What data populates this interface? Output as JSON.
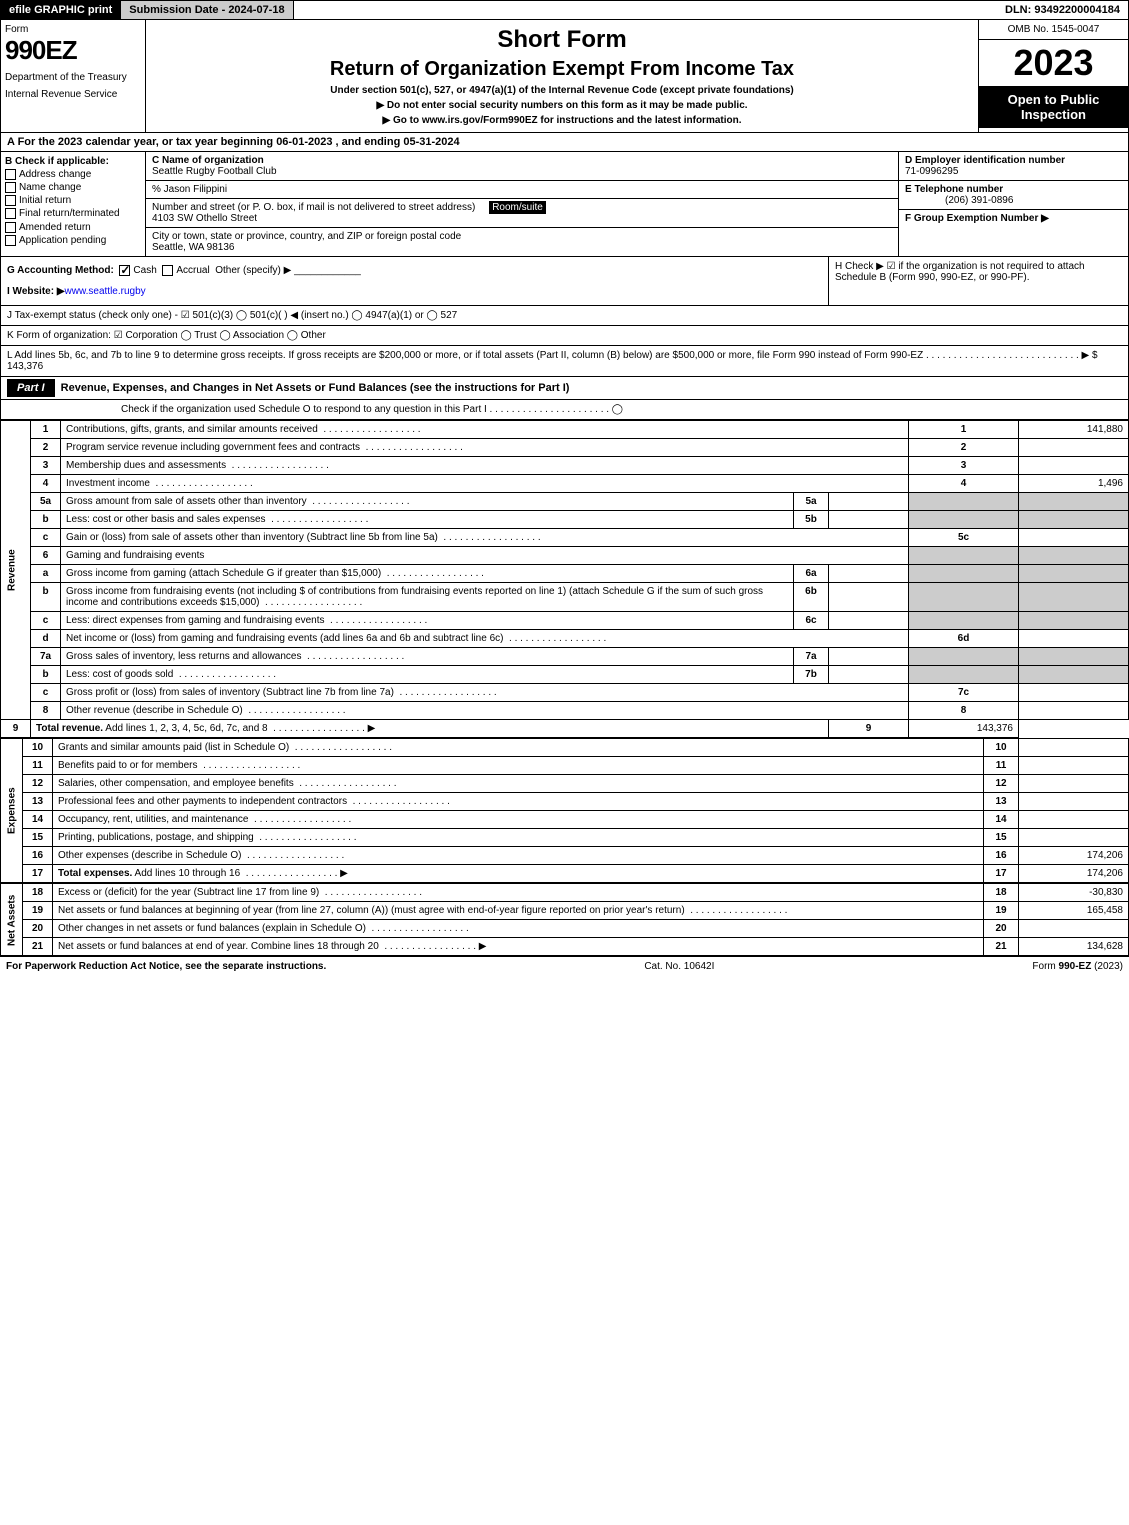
{
  "topbar": {
    "efile": "efile GRAPHIC print",
    "submission": "Submission Date - 2024-07-18",
    "dln": "DLN: 93492200004184"
  },
  "header": {
    "form_label": "Form",
    "form_number": "990EZ",
    "dept1": "Department of the Treasury",
    "dept2": "Internal Revenue Service",
    "title1": "Short Form",
    "title2": "Return of Organization Exempt From Income Tax",
    "sub1": "Under section 501(c), 527, or 4947(a)(1) of the Internal Revenue Code (except private foundations)",
    "sub2": "▶ Do not enter social security numbers on this form as it may be made public.",
    "sub3": "▶ Go to www.irs.gov/Form990EZ for instructions and the latest information.",
    "omb": "OMB No. 1545-0047",
    "year": "2023",
    "open": "Open to Public Inspection"
  },
  "section_a": "A  For the 2023 calendar year, or tax year beginning 06-01-2023 , and ending 05-31-2024",
  "col_b": {
    "header": "B  Check if applicable:",
    "items": [
      "Address change",
      "Name change",
      "Initial return",
      "Final return/terminated",
      "Amended return",
      "Application pending"
    ]
  },
  "col_c": {
    "name_label": "C Name of organization",
    "name": "Seattle Rugby Football Club",
    "care_of": "% Jason Filippini",
    "street_label": "Number and street (or P. O. box, if mail is not delivered to street address)",
    "room_label": "Room/suite",
    "street": "4103 SW Othello Street",
    "city_label": "City or town, state or province, country, and ZIP or foreign postal code",
    "city": "Seattle, WA  98136"
  },
  "col_d": {
    "ein_label": "D Employer identification number",
    "ein": "71-0996295",
    "phone_label": "E Telephone number",
    "phone": "(206) 391-0896",
    "group_label": "F Group Exemption Number  ▶"
  },
  "row_g": {
    "label": "G Accounting Method:",
    "cash": "Cash",
    "accrual": "Accrual",
    "other": "Other (specify) ▶",
    "website_label": "I Website: ▶",
    "website": "www.seattle.rugby"
  },
  "row_h": "H  Check ▶ ☑ if the organization is not required to attach Schedule B (Form 990, 990-EZ, or 990-PF).",
  "row_j": "J Tax-exempt status (check only one) - ☑ 501(c)(3)  ◯ 501(c)(  ) ◀ (insert no.)  ◯ 4947(a)(1) or  ◯ 527",
  "row_k": "K Form of organization:  ☑ Corporation  ◯ Trust  ◯ Association  ◯ Other",
  "row_l": "L Add lines 5b, 6c, and 7b to line 9 to determine gross receipts. If gross receipts are $200,000 or more, or if total assets (Part II, column (B) below) are $500,000 or more, file Form 990 instead of Form 990-EZ . . . . . . . . . . . . . . . . . . . . . . . . . . . . ▶ $ 143,376",
  "part1": {
    "label": "Part I",
    "title": "Revenue, Expenses, and Changes in Net Assets or Fund Balances (see the instructions for Part I)",
    "check": "Check if the organization used Schedule O to respond to any question in this Part I . . . . . . . . . . . . . . . . . . . . . . ◯"
  },
  "sections": {
    "revenue": "Revenue",
    "expenses": "Expenses",
    "netassets": "Net Assets"
  },
  "lines": [
    {
      "n": "1",
      "desc": "Contributions, gifts, grants, and similar amounts received",
      "rn": "1",
      "amt": "141,880"
    },
    {
      "n": "2",
      "desc": "Program service revenue including government fees and contracts",
      "rn": "2",
      "amt": ""
    },
    {
      "n": "3",
      "desc": "Membership dues and assessments",
      "rn": "3",
      "amt": ""
    },
    {
      "n": "4",
      "desc": "Investment income",
      "rn": "4",
      "amt": "1,496"
    },
    {
      "n": "5a",
      "desc": "Gross amount from sale of assets other than inventory",
      "sn": "5a",
      "samt": "",
      "gray": true
    },
    {
      "n": "b",
      "desc": "Less: cost or other basis and sales expenses",
      "sn": "5b",
      "samt": "",
      "gray": true
    },
    {
      "n": "c",
      "desc": "Gain or (loss) from sale of assets other than inventory (Subtract line 5b from line 5a)",
      "rn": "5c",
      "amt": ""
    },
    {
      "n": "6",
      "desc": "Gaming and fundraising events",
      "gray": true,
      "noright": true
    },
    {
      "n": "a",
      "desc": "Gross income from gaming (attach Schedule G if greater than $15,000)",
      "sn": "6a",
      "samt": "",
      "gray": true
    },
    {
      "n": "b",
      "desc": "Gross income from fundraising events (not including $                    of contributions from fundraising events reported on line 1) (attach Schedule G if the sum of such gross income and contributions exceeds $15,000)",
      "sn": "6b",
      "samt": "",
      "gray": true
    },
    {
      "n": "c",
      "desc": "Less: direct expenses from gaming and fundraising events",
      "sn": "6c",
      "samt": "",
      "gray": true
    },
    {
      "n": "d",
      "desc": "Net income or (loss) from gaming and fundraising events (add lines 6a and 6b and subtract line 6c)",
      "rn": "6d",
      "amt": ""
    },
    {
      "n": "7a",
      "desc": "Gross sales of inventory, less returns and allowances",
      "sn": "7a",
      "samt": "",
      "gray": true
    },
    {
      "n": "b",
      "desc": "Less: cost of goods sold",
      "sn": "7b",
      "samt": "",
      "gray": true
    },
    {
      "n": "c",
      "desc": "Gross profit or (loss) from sales of inventory (Subtract line 7b from line 7a)",
      "rn": "7c",
      "amt": ""
    },
    {
      "n": "8",
      "desc": "Other revenue (describe in Schedule O)",
      "rn": "8",
      "amt": ""
    },
    {
      "n": "9",
      "desc": "Total revenue. Add lines 1, 2, 3, 4, 5c, 6d, 7c, and 8",
      "rn": "9",
      "amt": "143,376",
      "bold": true,
      "arrow": true
    }
  ],
  "exp_lines": [
    {
      "n": "10",
      "desc": "Grants and similar amounts paid (list in Schedule O)",
      "rn": "10",
      "amt": ""
    },
    {
      "n": "11",
      "desc": "Benefits paid to or for members",
      "rn": "11",
      "amt": ""
    },
    {
      "n": "12",
      "desc": "Salaries, other compensation, and employee benefits",
      "rn": "12",
      "amt": ""
    },
    {
      "n": "13",
      "desc": "Professional fees and other payments to independent contractors",
      "rn": "13",
      "amt": ""
    },
    {
      "n": "14",
      "desc": "Occupancy, rent, utilities, and maintenance",
      "rn": "14",
      "amt": ""
    },
    {
      "n": "15",
      "desc": "Printing, publications, postage, and shipping",
      "rn": "15",
      "amt": ""
    },
    {
      "n": "16",
      "desc": "Other expenses (describe in Schedule O)",
      "rn": "16",
      "amt": "174,206"
    },
    {
      "n": "17",
      "desc": "Total expenses. Add lines 10 through 16",
      "rn": "17",
      "amt": "174,206",
      "bold": true,
      "arrow": true
    }
  ],
  "na_lines": [
    {
      "n": "18",
      "desc": "Excess or (deficit) for the year (Subtract line 17 from line 9)",
      "rn": "18",
      "amt": "-30,830"
    },
    {
      "n": "19",
      "desc": "Net assets or fund balances at beginning of year (from line 27, column (A)) (must agree with end-of-year figure reported on prior year's return)",
      "rn": "19",
      "amt": "165,458"
    },
    {
      "n": "20",
      "desc": "Other changes in net assets or fund balances (explain in Schedule O)",
      "rn": "20",
      "amt": ""
    },
    {
      "n": "21",
      "desc": "Net assets or fund balances at end of year. Combine lines 18 through 20",
      "rn": "21",
      "amt": "134,628",
      "arrow": true
    }
  ],
  "footer": {
    "left": "For Paperwork Reduction Act Notice, see the separate instructions.",
    "mid": "Cat. No. 10642I",
    "right": "Form 990-EZ (2023)"
  }
}
